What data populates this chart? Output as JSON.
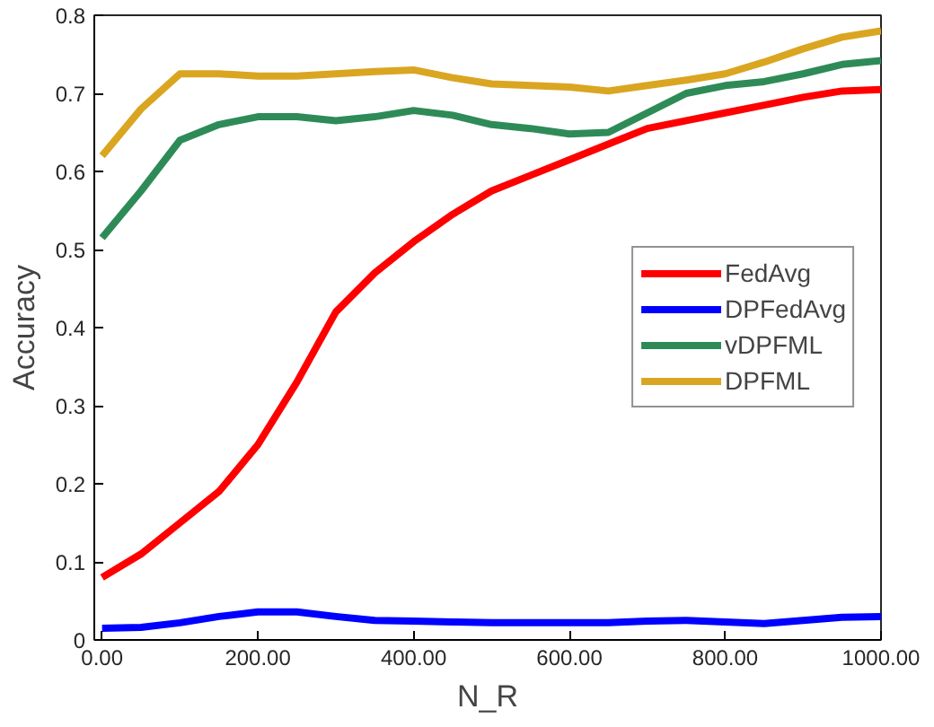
{
  "chart_data": {
    "type": "line",
    "xlabel": "N_R",
    "ylabel": "Accuracy",
    "x": [
      0,
      50,
      100,
      150,
      200,
      250,
      300,
      350,
      400,
      450,
      500,
      550,
      600,
      650,
      700,
      750,
      800,
      850,
      900,
      950,
      1000
    ],
    "series": [
      {
        "name": "FedAvg",
        "color": "#ff0000",
        "values": [
          0.08,
          0.11,
          0.15,
          0.19,
          0.25,
          0.33,
          0.42,
          0.47,
          0.51,
          0.545,
          0.575,
          0.595,
          0.615,
          0.635,
          0.655,
          0.665,
          0.675,
          0.685,
          0.695,
          0.703,
          0.705
        ]
      },
      {
        "name": "DPFedAvg",
        "color": "#0000ff",
        "values": [
          0.015,
          0.016,
          0.022,
          0.03,
          0.036,
          0.036,
          0.03,
          0.025,
          0.024,
          0.023,
          0.022,
          0.022,
          0.022,
          0.022,
          0.024,
          0.025,
          0.023,
          0.021,
          0.025,
          0.029,
          0.03
        ]
      },
      {
        "name": "vDPFML",
        "color": "#2e8b57",
        "values": [
          0.515,
          0.575,
          0.64,
          0.66,
          0.67,
          0.67,
          0.665,
          0.67,
          0.678,
          0.672,
          0.66,
          0.655,
          0.648,
          0.65,
          0.675,
          0.7,
          0.71,
          0.715,
          0.725,
          0.737,
          0.742
        ]
      },
      {
        "name": "DPFML",
        "color": "#daa520",
        "values": [
          0.62,
          0.68,
          0.725,
          0.725,
          0.722,
          0.722,
          0.725,
          0.728,
          0.73,
          0.72,
          0.712,
          0.71,
          0.708,
          0.703,
          0.71,
          0.717,
          0.725,
          0.74,
          0.757,
          0.772,
          0.78
        ]
      }
    ],
    "xlim": [
      -10,
      1000
    ],
    "ylim": [
      0,
      0.8
    ],
    "xticks": [
      {
        "value": 0,
        "label": "0.00"
      },
      {
        "value": 200,
        "label": "200.00"
      },
      {
        "value": 400,
        "label": "400.00"
      },
      {
        "value": 600,
        "label": "600.00"
      },
      {
        "value": 800,
        "label": "800.00"
      },
      {
        "value": 1000,
        "label": "1000.00"
      }
    ],
    "yticks": [
      0,
      0.1,
      0.2,
      0.3,
      0.4,
      0.5,
      0.6,
      0.7,
      0.8
    ],
    "legend": "right",
    "grid": false,
    "line_style": "solid",
    "marker": "none"
  }
}
